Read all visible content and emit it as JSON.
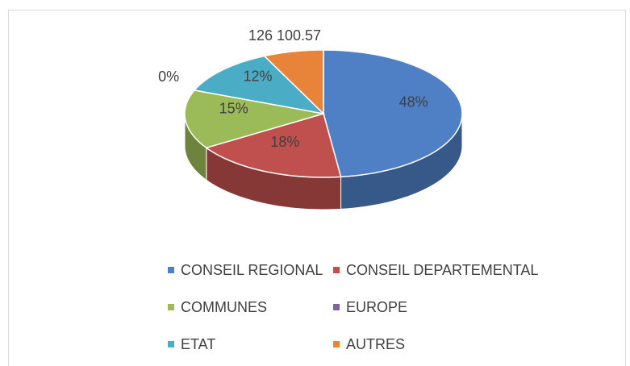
{
  "chart_data": {
    "type": "pie3d",
    "categories": [
      "CONSEIL REGIONAL",
      "CONSEIL DEPARTEMENTAL",
      "COMMUNES",
      "EUROPE",
      "ETAT",
      "AUTRES"
    ],
    "values": [
      48,
      18,
      15,
      0,
      12,
      7
    ],
    "value_labels": [
      "48%",
      "18%",
      "15%",
      "0%",
      "12%",
      null
    ],
    "colors": [
      "#4f7fc4",
      "#c0504d",
      "#9bbb59",
      "#8064a2",
      "#4bacc6",
      "#e8833a"
    ],
    "annotations": [
      "126 100.57"
    ],
    "legend": "bottom"
  }
}
